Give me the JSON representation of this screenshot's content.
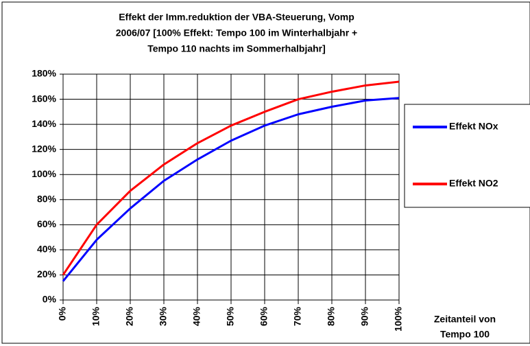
{
  "chart_data": {
    "type": "line",
    "title": [
      "Effekt der Imm.reduktion der VBA-Steuerung, Vomp",
      "2006/07 [100% Effekt: Tempo 100 im Winterhalbjahr +",
      "Tempo 110 nachts im Sommerhalbjahr]"
    ],
    "x_label": [
      "Zeitanteil von",
      "Tempo 100"
    ],
    "x": [
      0,
      10,
      20,
      30,
      40,
      50,
      60,
      70,
      80,
      90,
      100
    ],
    "series": [
      {
        "name": "Effekt NOx",
        "color": "#0000ff",
        "values": [
          15,
          48,
          73,
          95,
          112,
          127,
          139,
          148,
          154,
          159,
          161
        ]
      },
      {
        "name": "Effekt NO2",
        "color": "#ff0000",
        "values": [
          20,
          60,
          87,
          108,
          125,
          139,
          150,
          160,
          166,
          171,
          174
        ]
      }
    ],
    "xlim": [
      0,
      100
    ],
    "xticks": [
      {
        "value": 0,
        "label": "0%"
      },
      {
        "value": 10,
        "label": "10%"
      },
      {
        "value": 20,
        "label": "20%"
      },
      {
        "value": 30,
        "label": "30%"
      },
      {
        "value": 40,
        "label": "40%"
      },
      {
        "value": 50,
        "label": "50%"
      },
      {
        "value": 60,
        "label": "60%"
      },
      {
        "value": 70,
        "label": "70%"
      },
      {
        "value": 80,
        "label": "80%"
      },
      {
        "value": 90,
        "label": "90%"
      },
      {
        "value": 100,
        "label": "100%"
      }
    ],
    "ylim": [
      0,
      180
    ],
    "yticks": [
      {
        "value": 0,
        "label": "0%"
      },
      {
        "value": 20,
        "label": "20%"
      },
      {
        "value": 40,
        "label": "40%"
      },
      {
        "value": 60,
        "label": "60%"
      },
      {
        "value": 80,
        "label": "80%"
      },
      {
        "value": 100,
        "label": "100%"
      },
      {
        "value": 120,
        "label": "120%"
      },
      {
        "value": 140,
        "label": "140%"
      },
      {
        "value": 160,
        "label": "160%"
      },
      {
        "value": 180,
        "label": "180%"
      }
    ],
    "grid": true,
    "legend": "right"
  }
}
